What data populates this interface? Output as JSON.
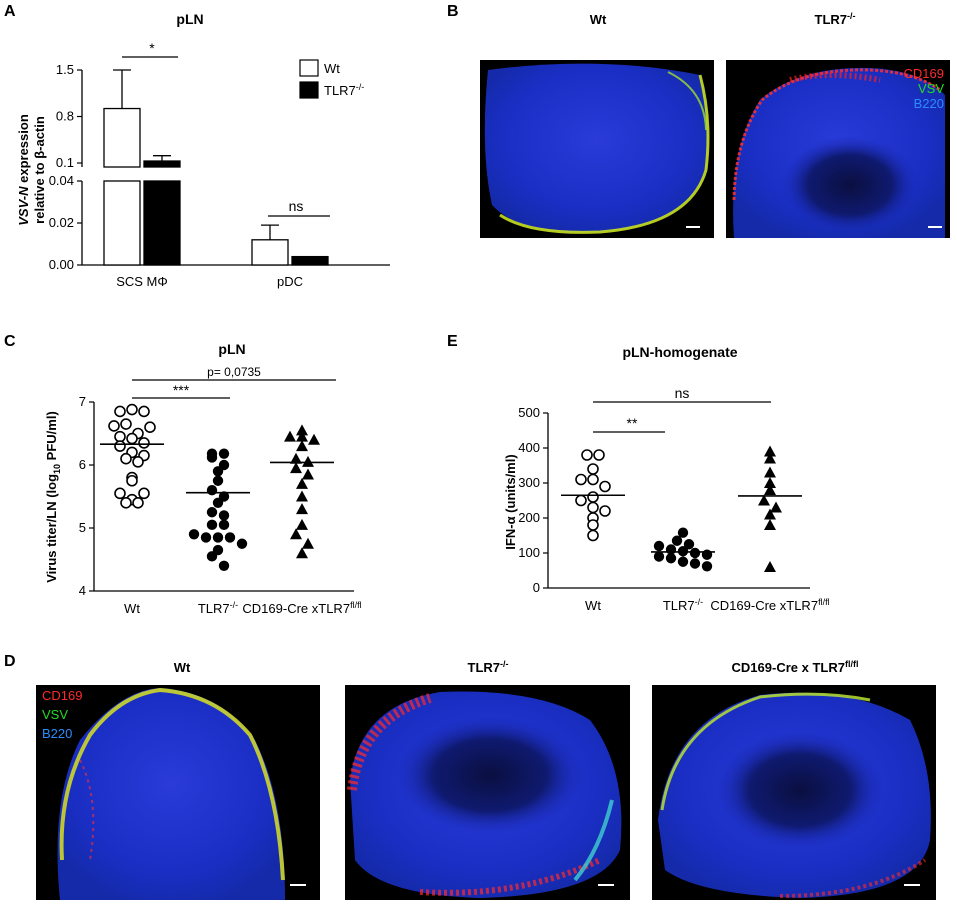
{
  "panel_letters": {
    "A": "A",
    "B": "B",
    "C": "C",
    "D": "D",
    "E": "E"
  },
  "chart_data": [
    {
      "panel": "A",
      "type": "bar",
      "title": "pLN",
      "ylabel_main": "VSV-N",
      "ylabel_rest": " expression",
      "ylabel_line2": "relative to β-actin",
      "categories": [
        "SCS MΦ",
        "pDC"
      ],
      "series": [
        {
          "name": "Wt",
          "values": [
            0.92,
            0.012
          ],
          "errors": [
            0.58,
            0.007
          ],
          "fill": "#ffffff"
        },
        {
          "name": "TLR7",
          "name_sup": "-/-",
          "values": [
            0.13,
            0.004
          ],
          "errors": [
            0.08,
            0.0
          ],
          "fill": "#000000"
        }
      ],
      "yaxis_upper": {
        "range": [
          0.04,
          1.5
        ],
        "ticks": [
          "0.1",
          "0.8",
          "1.5"
        ]
      },
      "yaxis_lower": {
        "range": [
          0,
          0.04
        ],
        "ticks": [
          "0.00",
          "0.02",
          "0.04"
        ]
      },
      "annotations": [
        "*",
        "ns"
      ]
    },
    {
      "panel": "C",
      "type": "scatter",
      "title": "pLN",
      "ylabel_main": "Virus titer/LN (log",
      "ylabel_sub": "10",
      "ylabel_end": " PFU/ml)",
      "ylim": [
        4,
        7
      ],
      "yticks": [
        "4",
        "5",
        "6",
        "7"
      ],
      "groups": [
        {
          "label": "Wt",
          "sup": "",
          "marker": "open-circle",
          "mean": 6.33,
          "values": [
            6.85,
            6.88,
            6.62,
            6.85,
            6.65,
            6.5,
            6.45,
            6.42,
            6.6,
            6.3,
            6.35,
            6.2,
            6.1,
            6.05,
            6.15,
            5.8,
            5.75,
            5.55,
            5.45,
            5.4,
            5.55,
            5.4
          ]
        },
        {
          "label": "TLR7",
          "sup": "-/-",
          "marker": "filled-circle",
          "mean": 5.56,
          "values": [
            6.18,
            6.18,
            6.12,
            6.0,
            5.9,
            5.75,
            5.6,
            5.5,
            5.4,
            5.25,
            5.2,
            5.05,
            5.05,
            4.9,
            4.85,
            4.85,
            4.85,
            4.75,
            4.65,
            4.55,
            4.4
          ]
        },
        {
          "label": "CD169-Cre xTLR7",
          "sup": "fl/fl",
          "marker": "filled-triangle",
          "mean": 6.04,
          "values": [
            6.55,
            6.45,
            6.45,
            6.4,
            6.3,
            6.1,
            6.05,
            5.95,
            5.85,
            5.7,
            5.5,
            5.3,
            5.05,
            4.9,
            4.75,
            4.6
          ]
        }
      ],
      "annotations": [
        {
          "text": "***",
          "from": 0,
          "to": 1
        },
        {
          "text": "p= 0,0735",
          "from": 0,
          "to": 2
        }
      ]
    },
    {
      "panel": "E",
      "type": "scatter",
      "title": "pLN-homogenate",
      "ylabel": "IFN-α (units/ml)",
      "ylim": [
        0,
        500
      ],
      "yticks": [
        "0",
        "100",
        "200",
        "300",
        "400",
        "500"
      ],
      "groups": [
        {
          "label": "Wt",
          "sup": "",
          "marker": "open-circle",
          "mean": 265,
          "values": [
            380,
            380,
            340,
            310,
            310,
            290,
            260,
            250,
            230,
            220,
            200,
            180,
            150
          ]
        },
        {
          "label": "TLR7",
          "sup": "-/-",
          "marker": "filled-circle",
          "mean": 103,
          "values": [
            158,
            135,
            125,
            120,
            110,
            105,
            100,
            95,
            90,
            85,
            75,
            70,
            62
          ]
        },
        {
          "label": "CD169-Cre xTLR7",
          "sup": "fl/fl",
          "marker": "filled-triangle",
          "mean": 263,
          "values": [
            390,
            370,
            330,
            300,
            280,
            250,
            230,
            210,
            180,
            60
          ]
        }
      ],
      "annotations": [
        {
          "text": "**",
          "from": 0,
          "to": 1
        },
        {
          "text": "ns",
          "from": 0,
          "to": 2
        }
      ]
    }
  ],
  "micrographs": {
    "B": [
      {
        "title": "Wt",
        "title_sup": ""
      },
      {
        "title": "TLR7",
        "title_sup": "-/-",
        "legend": [
          "CD169",
          "VSV",
          "B220"
        ]
      }
    ],
    "D": [
      {
        "title": "Wt",
        "title_sup": "",
        "legend": [
          "CD169",
          "VSV",
          "B220"
        ]
      },
      {
        "title": "TLR7",
        "title_sup": "-/-"
      },
      {
        "title": "CD169-Cre x TLR7",
        "title_sup": "fl/fl"
      }
    ]
  },
  "colors": {
    "cd169": "#ff2a2a",
    "vsv": "#22dd22",
    "b220": "#2a8cff",
    "tissue": "#1e32d8",
    "background": "#000000"
  }
}
